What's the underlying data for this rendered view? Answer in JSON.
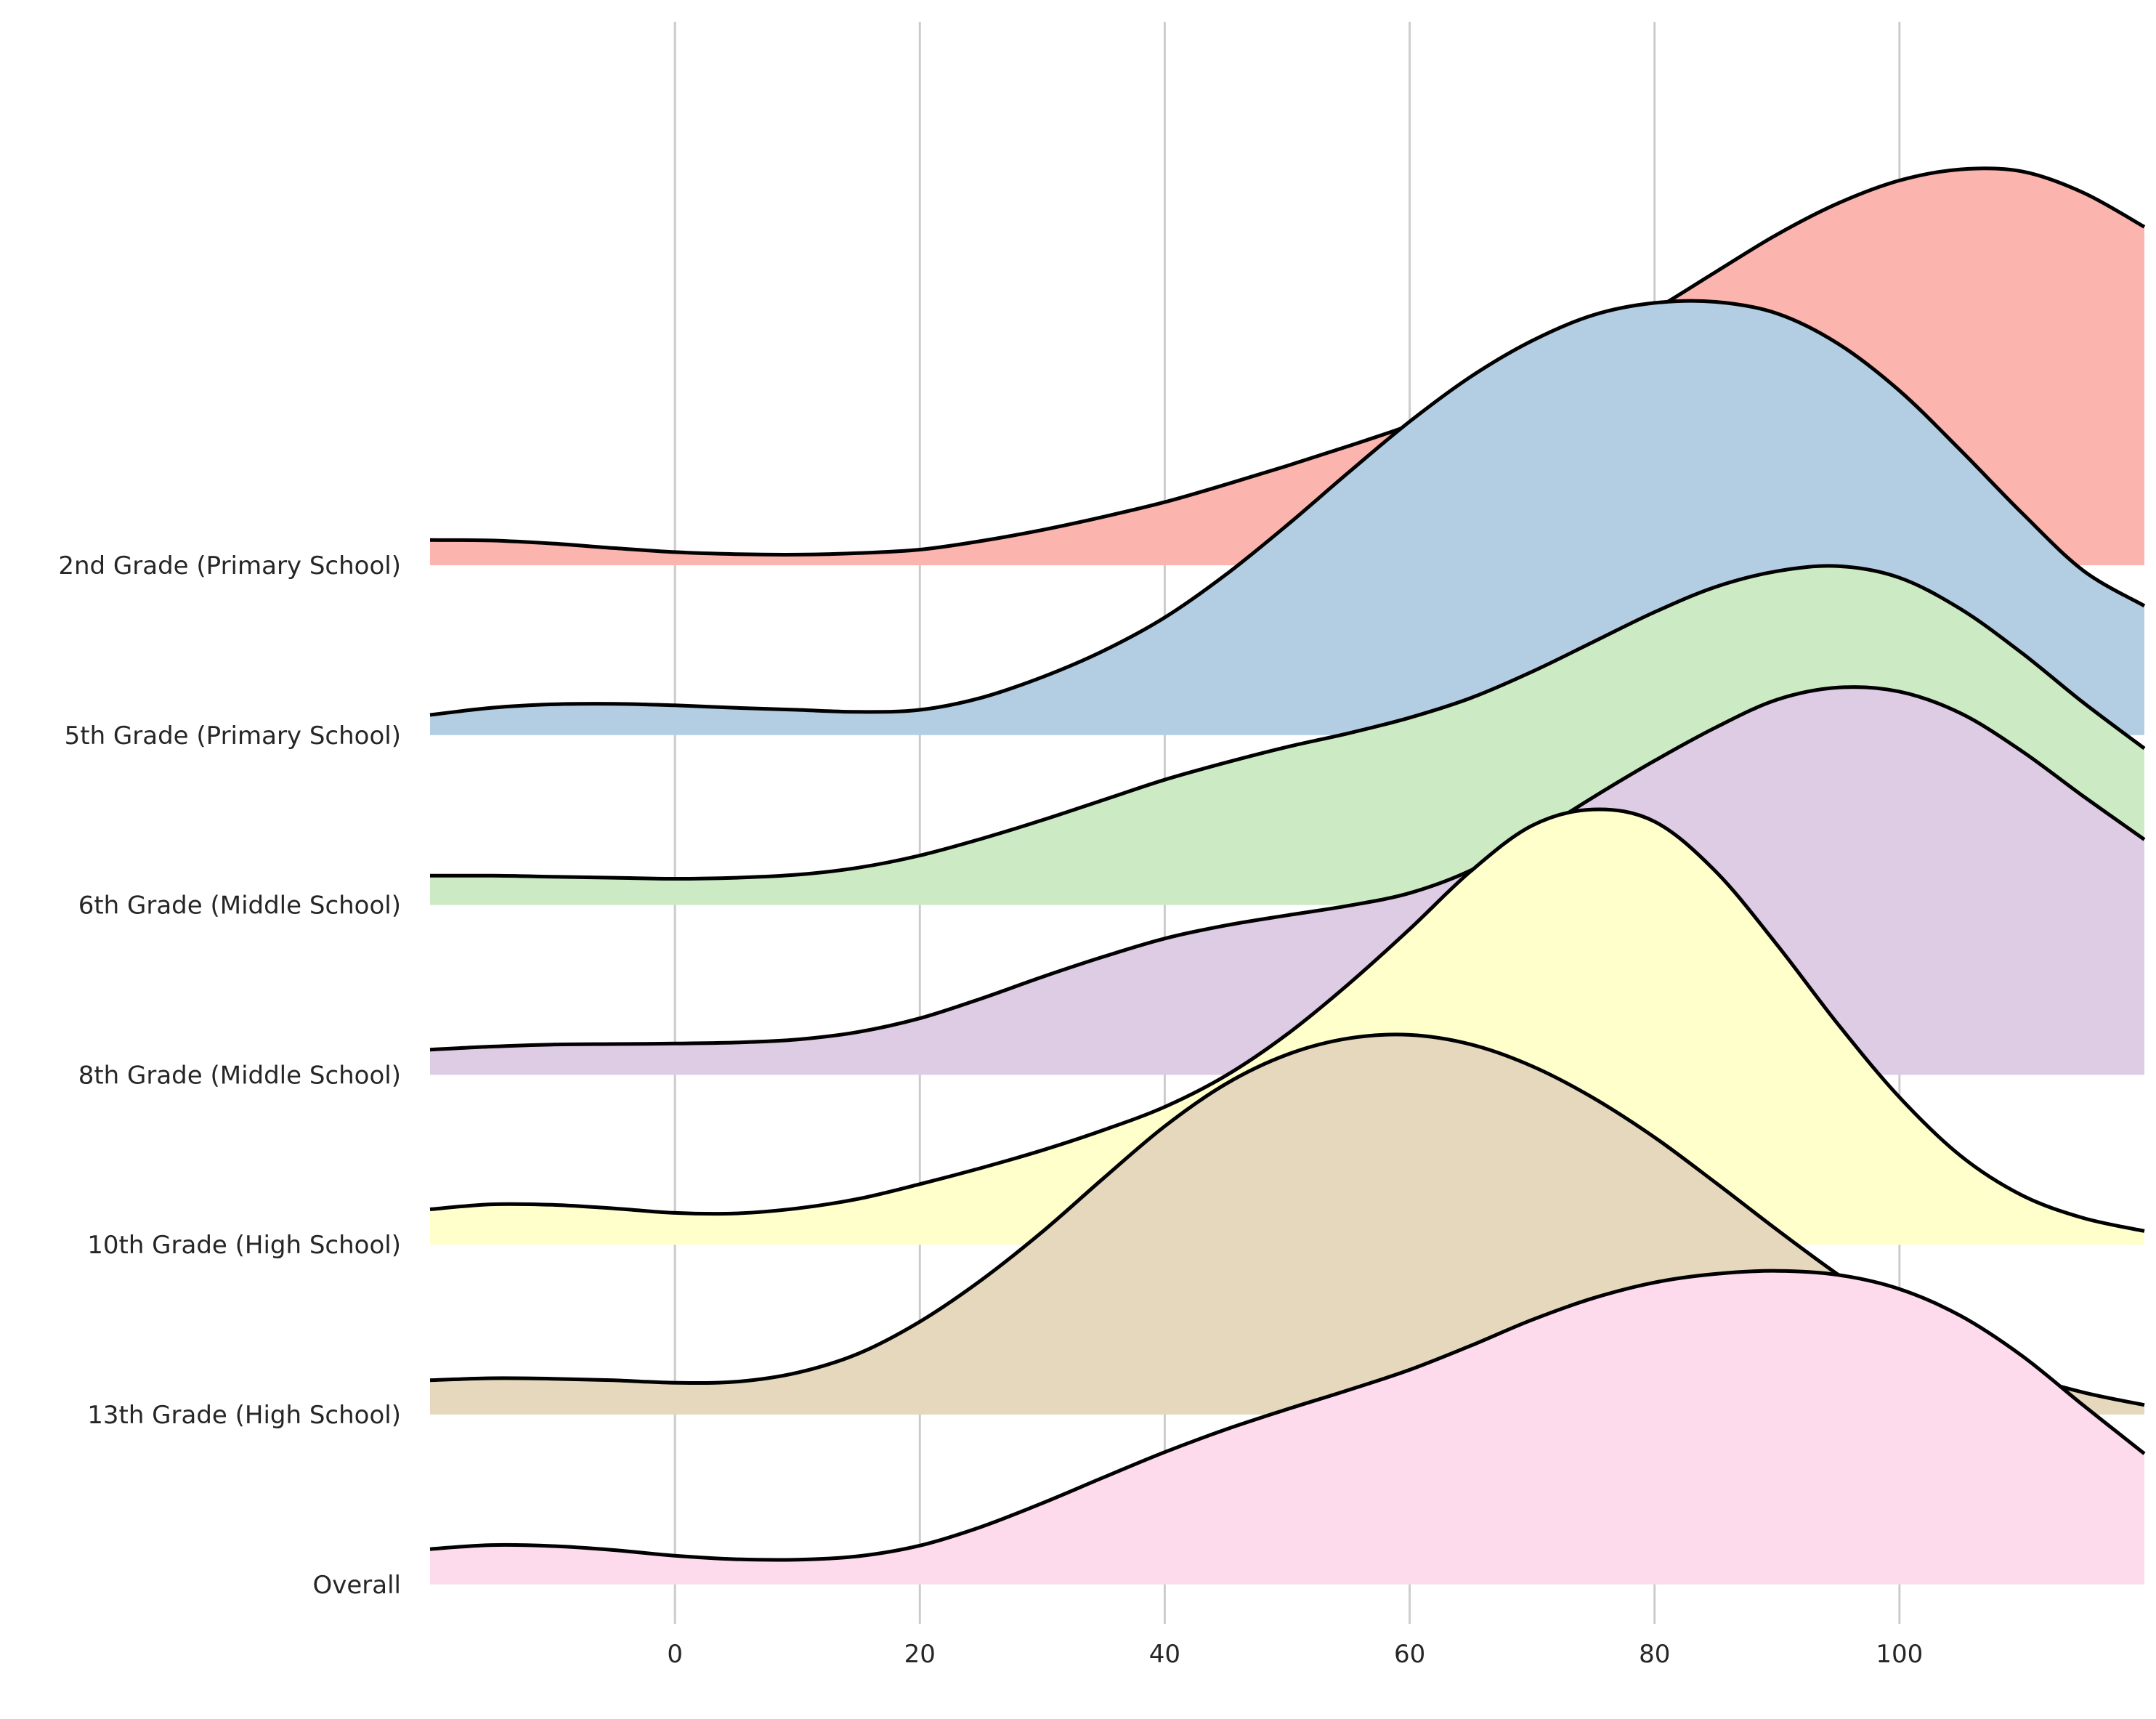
{
  "chart_data": {
    "type": "ridgeline",
    "title": "",
    "xlabel": "",
    "ylabel": "",
    "xlim": [
      -20,
      120
    ],
    "xticks": [
      0,
      20,
      40,
      60,
      80,
      100
    ],
    "grid": "vertical",
    "x": [
      -20,
      -15,
      -10,
      -5,
      0,
      5,
      10,
      15,
      20,
      25,
      30,
      35,
      40,
      45,
      50,
      55,
      60,
      65,
      70,
      75,
      80,
      85,
      90,
      95,
      100,
      105,
      110,
      115,
      120
    ],
    "series": [
      {
        "name": "2nd Grade (Primary School)",
        "color": "#fbb4ae",
        "values": [
          0.05,
          0.049,
          0.043,
          0.034,
          0.026,
          0.022,
          0.021,
          0.024,
          0.031,
          0.048,
          0.07,
          0.096,
          0.125,
          0.16,
          0.197,
          0.236,
          0.277,
          0.325,
          0.377,
          0.438,
          0.506,
          0.581,
          0.655,
          0.717,
          0.762,
          0.784,
          0.78,
          0.738,
          0.67
        ]
      },
      {
        "name": "5th Grade (Primary School)",
        "color": "#b3cde3",
        "values": [
          0.04,
          0.054,
          0.061,
          0.062,
          0.059,
          0.054,
          0.05,
          0.046,
          0.05,
          0.074,
          0.115,
          0.167,
          0.233,
          0.318,
          0.416,
          0.52,
          0.621,
          0.71,
          0.781,
          0.832,
          0.856,
          0.858,
          0.835,
          0.775,
          0.682,
          0.564,
          0.44,
          0.326,
          0.256
        ]
      },
      {
        "name": "6th Grade (Middle School)",
        "color": "#ccebc5",
        "values": [
          0.058,
          0.058,
          0.056,
          0.054,
          0.052,
          0.054,
          0.06,
          0.074,
          0.098,
          0.131,
          0.168,
          0.208,
          0.248,
          0.282,
          0.313,
          0.34,
          0.371,
          0.41,
          0.462,
          0.521,
          0.58,
          0.63,
          0.661,
          0.671,
          0.648,
          0.586,
          0.499,
          0.401,
          0.31
        ]
      },
      {
        "name": "8th Grade (Middle School)",
        "color": "#decbe4",
        "values": [
          0.05,
          0.056,
          0.06,
          0.061,
          0.062,
          0.064,
          0.07,
          0.085,
          0.112,
          0.151,
          0.194,
          0.234,
          0.27,
          0.296,
          0.316,
          0.335,
          0.36,
          0.405,
          0.474,
          0.55,
          0.622,
          0.688,
          0.743,
          0.767,
          0.759,
          0.716,
          0.641,
          0.552,
          0.466
        ]
      },
      {
        "name": "10th Grade (High School)",
        "color": "#fed9a6",
        "fillColor": "#ffffcc",
        "values": [
          0.07,
          0.08,
          0.079,
          0.072,
          0.063,
          0.062,
          0.072,
          0.091,
          0.12,
          0.152,
          0.187,
          0.227,
          0.273,
          0.335,
          0.417,
          0.516,
          0.625,
          0.74,
          0.83,
          0.862,
          0.838,
          0.739,
          0.594,
          0.436,
          0.292,
          0.176,
          0.098,
          0.053,
          0.027
        ]
      },
      {
        "name": "13th Grade (High School)",
        "color": "#e5d8bd",
        "values": [
          0.068,
          0.072,
          0.071,
          0.068,
          0.063,
          0.065,
          0.083,
          0.121,
          0.184,
          0.266,
          0.362,
          0.468,
          0.571,
          0.655,
          0.713,
          0.745,
          0.752,
          0.733,
          0.69,
          0.627,
          0.549,
          0.459,
          0.366,
          0.277,
          0.197,
          0.131,
          0.079,
          0.044,
          0.019
        ]
      },
      {
        "name": "Overall",
        "color": "#fddaec",
        "values": [
          0.07,
          0.078,
          0.076,
          0.068,
          0.057,
          0.05,
          0.049,
          0.056,
          0.077,
          0.114,
          0.161,
          0.212,
          0.262,
          0.307,
          0.347,
          0.385,
          0.425,
          0.473,
          0.524,
          0.567,
          0.598,
          0.615,
          0.621,
          0.613,
          0.585,
          0.532,
          0.453,
          0.355,
          0.259
        ]
      }
    ]
  }
}
